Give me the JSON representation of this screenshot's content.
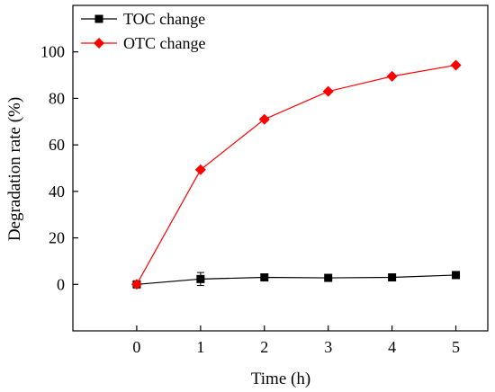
{
  "chart_data": {
    "type": "line",
    "xlabel": "Time (h)",
    "ylabel": "Degradation rate (%)",
    "xlim": [
      -1,
      5.5
    ],
    "ylim": [
      -20,
      120
    ],
    "xticks": [
      0,
      1,
      2,
      3,
      4,
      5
    ],
    "yticks": [
      0,
      20,
      40,
      60,
      80,
      100
    ],
    "grid": false,
    "legend_position": "top-left",
    "series": [
      {
        "name": "TOC change",
        "color": "#000000",
        "marker": "square",
        "x": [
          0,
          1,
          2,
          3,
          4,
          5
        ],
        "values": [
          0,
          2.3,
          3.0,
          2.8,
          3.0,
          4.0
        ],
        "errors": [
          0.5,
          2.8,
          0.6,
          0.9,
          0.7,
          0.9
        ]
      },
      {
        "name": "OTC change",
        "color": "#ff0000",
        "marker": "diamond",
        "x": [
          0,
          1,
          2,
          3,
          4,
          5
        ],
        "values": [
          0,
          49.3,
          71.0,
          83.0,
          89.5,
          94.3
        ],
        "errors": [
          0,
          0.6,
          0.8,
          0.6,
          0.5,
          0.5
        ]
      }
    ]
  }
}
